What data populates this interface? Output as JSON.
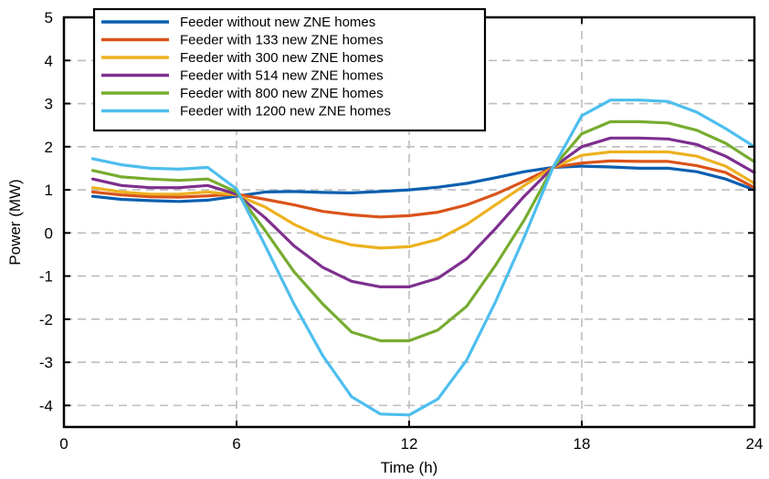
{
  "chart_data": {
    "type": "line",
    "title": "",
    "xlabel": "Time (h)",
    "ylabel": "Power (MW)",
    "xlim": [
      0,
      24
    ],
    "ylim": [
      -4.5,
      5
    ],
    "xticks": [
      0,
      6,
      12,
      18,
      24
    ],
    "yticks": [
      -4,
      -3,
      -2,
      -1,
      0,
      1,
      2,
      3,
      4,
      5
    ],
    "xtick_labels": [
      "0",
      "6",
      "12",
      "18",
      "24"
    ],
    "ytick_labels": [
      "-4",
      "-3",
      "-2",
      "-1",
      "0",
      "1",
      "2",
      "3",
      "4",
      "5"
    ],
    "grid": true,
    "legend_position": "top-left",
    "x": [
      1,
      2,
      3,
      4,
      5,
      6,
      7,
      8,
      9,
      10,
      11,
      12,
      13,
      14,
      15,
      16,
      17,
      18,
      19,
      20,
      21,
      22,
      23,
      24
    ],
    "series": [
      {
        "name": "Feeder without new ZNE homes",
        "color": "#0b5fb0",
        "values": [
          0.85,
          0.78,
          0.75,
          0.73,
          0.76,
          0.85,
          0.95,
          0.96,
          0.94,
          0.93,
          0.96,
          1.0,
          1.06,
          1.15,
          1.28,
          1.42,
          1.52,
          1.55,
          1.53,
          1.5,
          1.5,
          1.42,
          1.25,
          1.0
        ]
      },
      {
        "name": "Feeder with 133 new ZNE homes",
        "color": "#d95319",
        "values": [
          0.95,
          0.88,
          0.84,
          0.83,
          0.86,
          0.9,
          0.78,
          0.65,
          0.5,
          0.42,
          0.37,
          0.4,
          0.48,
          0.65,
          0.9,
          1.2,
          1.52,
          1.62,
          1.67,
          1.66,
          1.66,
          1.56,
          1.4,
          1.05
        ]
      },
      {
        "name": "Feeder with 300 new ZNE homes",
        "color": "#edb120",
        "values": [
          1.05,
          0.95,
          0.9,
          0.9,
          0.95,
          0.88,
          0.6,
          0.2,
          -0.1,
          -0.28,
          -0.35,
          -0.32,
          -0.15,
          0.2,
          0.65,
          1.1,
          1.52,
          1.8,
          1.88,
          1.88,
          1.88,
          1.78,
          1.55,
          1.15
        ]
      },
      {
        "name": "Feeder with 514 new ZNE homes",
        "color": "#7e2f8e",
        "values": [
          1.25,
          1.1,
          1.05,
          1.05,
          1.1,
          0.9,
          0.35,
          -0.3,
          -0.8,
          -1.12,
          -1.25,
          -1.25,
          -1.05,
          -0.6,
          0.1,
          0.85,
          1.52,
          2.0,
          2.2,
          2.2,
          2.18,
          2.05,
          1.78,
          1.4
        ]
      },
      {
        "name": "Feeder with 800 new ZNE homes",
        "color": "#77ac30",
        "values": [
          1.45,
          1.3,
          1.25,
          1.22,
          1.25,
          0.95,
          0.05,
          -0.9,
          -1.65,
          -2.3,
          -2.5,
          -2.5,
          -2.25,
          -1.7,
          -0.75,
          0.3,
          1.52,
          2.3,
          2.58,
          2.58,
          2.55,
          2.38,
          2.08,
          1.65
        ]
      },
      {
        "name": "Feeder with 1200 new ZNE homes",
        "color": "#4dbeee",
        "values": [
          1.72,
          1.58,
          1.5,
          1.48,
          1.52,
          1.02,
          -0.3,
          -1.65,
          -2.85,
          -3.8,
          -4.2,
          -4.22,
          -3.85,
          -2.95,
          -1.6,
          -0.1,
          1.52,
          2.72,
          3.08,
          3.08,
          3.05,
          2.8,
          2.42,
          2.0
        ]
      }
    ]
  }
}
